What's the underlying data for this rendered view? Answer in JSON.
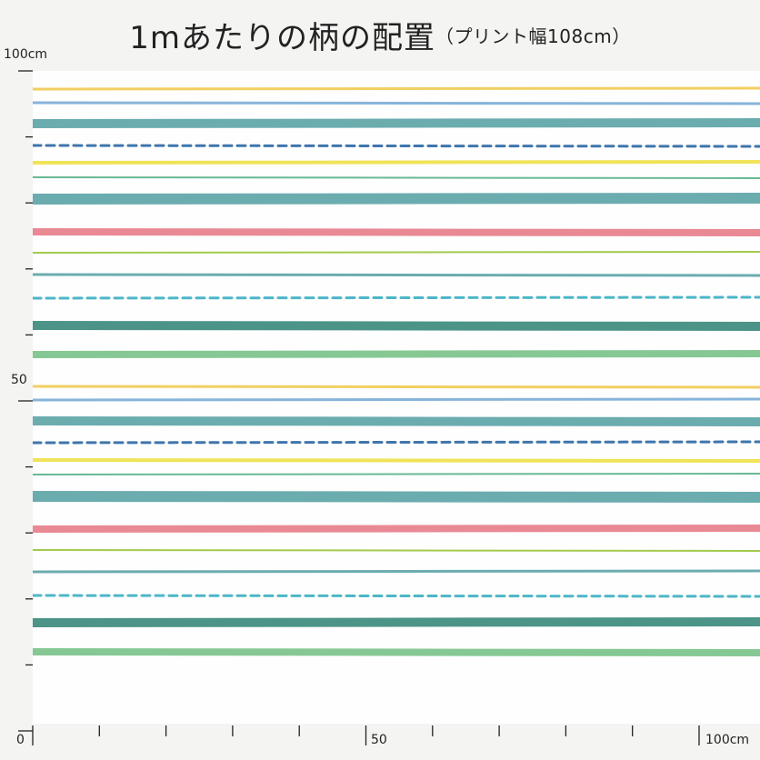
{
  "title": {
    "main": "1mあたりの柄の配置",
    "sub": "（プリント幅108cm）"
  },
  "axis": {
    "y_top_label": "100cm",
    "y_mid_label": "50",
    "x_zero_label": "0",
    "x_mid_label": "50",
    "x_end_label": "100cm"
  },
  "colors": {
    "background": "#f4f4f3",
    "fabric": "#fefefe",
    "stripe_yellow": "#f2cc55",
    "stripe_blue": "#7daed8",
    "stripe_teal": "#5fa6a9",
    "stripe_navy_dash": "#2f6aa6",
    "stripe_bright_yellow": "#efe14a",
    "stripe_green": "#5db48a",
    "stripe_pink": "#e8808a",
    "stripe_lime": "#9cc63f",
    "stripe_cyan_dash": "#3fb0c4",
    "stripe_dark_teal": "#3d8c7e",
    "stripe_light_green": "#7cc48a"
  }
}
